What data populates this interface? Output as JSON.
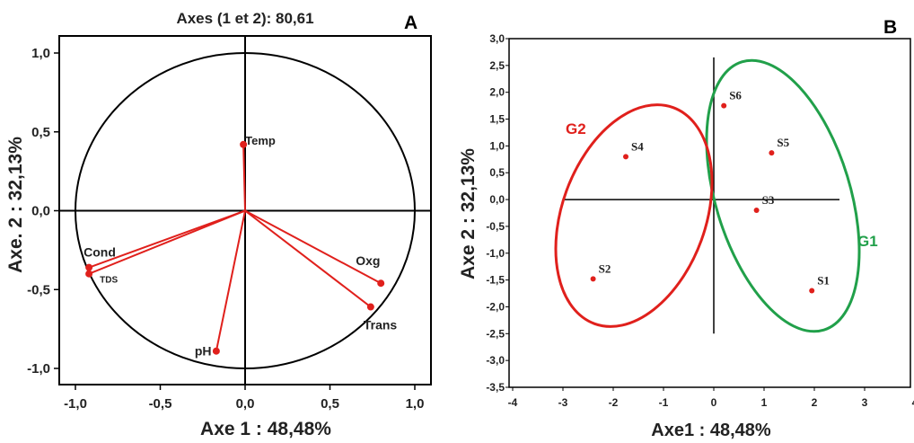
{
  "chart_data": [
    {
      "type": "scatter",
      "subtype": "correlation-circle",
      "panel_label": "A",
      "title": "Axes (1 et 2): 80,61",
      "xlabel": "Axe 1 : 48,48%",
      "ylabel": "Axe. 2 : 32,13%",
      "xlim": [
        -1.0,
        1.0
      ],
      "ylim": [
        -1.0,
        1.0
      ],
      "xticks": [
        "-1,0",
        "-0,5",
        "0,0",
        "0,5",
        "1,0"
      ],
      "yticks": [
        "-1,0",
        "-0,5",
        "0,0",
        "0,5",
        "1,0"
      ],
      "unit_circle": true,
      "variables": [
        {
          "label": "Temp",
          "x": -0.01,
          "y": 0.42
        },
        {
          "label": "Cond",
          "x": -0.92,
          "y": -0.36
        },
        {
          "label": "TDS",
          "x": -0.92,
          "y": -0.4
        },
        {
          "label": "Oxg",
          "x": 0.8,
          "y": -0.46
        },
        {
          "label": "Trans",
          "x": 0.74,
          "y": -0.61
        },
        {
          "label": "pH",
          "x": -0.17,
          "y": -0.89
        }
      ],
      "colors": {
        "vector": "#e0201c",
        "frame": "#000000"
      }
    },
    {
      "type": "scatter",
      "panel_label": "B",
      "xlabel": "Axe1 : 48,48%",
      "ylabel": "Axe 2 : 32,13%",
      "xlim": [
        -4,
        4
      ],
      "ylim": [
        -3.5,
        3.0
      ],
      "xticks": [
        "-4",
        "-3",
        "-2",
        "-1",
        "0",
        "1",
        "2",
        "3",
        "4"
      ],
      "yticks": [
        "3,0",
        "2,5",
        "2,0",
        "1,5",
        "1,0",
        "0,5",
        "0,0",
        "-0,5",
        "-1,0",
        "-1,5",
        "-2,0",
        "-2,5",
        "-3,0",
        "-3,5"
      ],
      "points": [
        {
          "label": "S1",
          "x": 1.95,
          "y": -1.7
        },
        {
          "label": "S2",
          "x": -2.4,
          "y": -1.48
        },
        {
          "label": "S3",
          "x": 0.85,
          "y": -0.2
        },
        {
          "label": "S4",
          "x": -1.75,
          "y": 0.8
        },
        {
          "label": "S5",
          "x": 1.15,
          "y": 0.87
        },
        {
          "label": "S6",
          "x": 0.2,
          "y": 1.75
        }
      ],
      "groups": [
        {
          "label": "G1",
          "color": "#21a04a"
        },
        {
          "label": "G2",
          "color": "#e0201c"
        }
      ],
      "colors": {
        "point": "#e0201c",
        "frame": "#000000"
      }
    }
  ]
}
